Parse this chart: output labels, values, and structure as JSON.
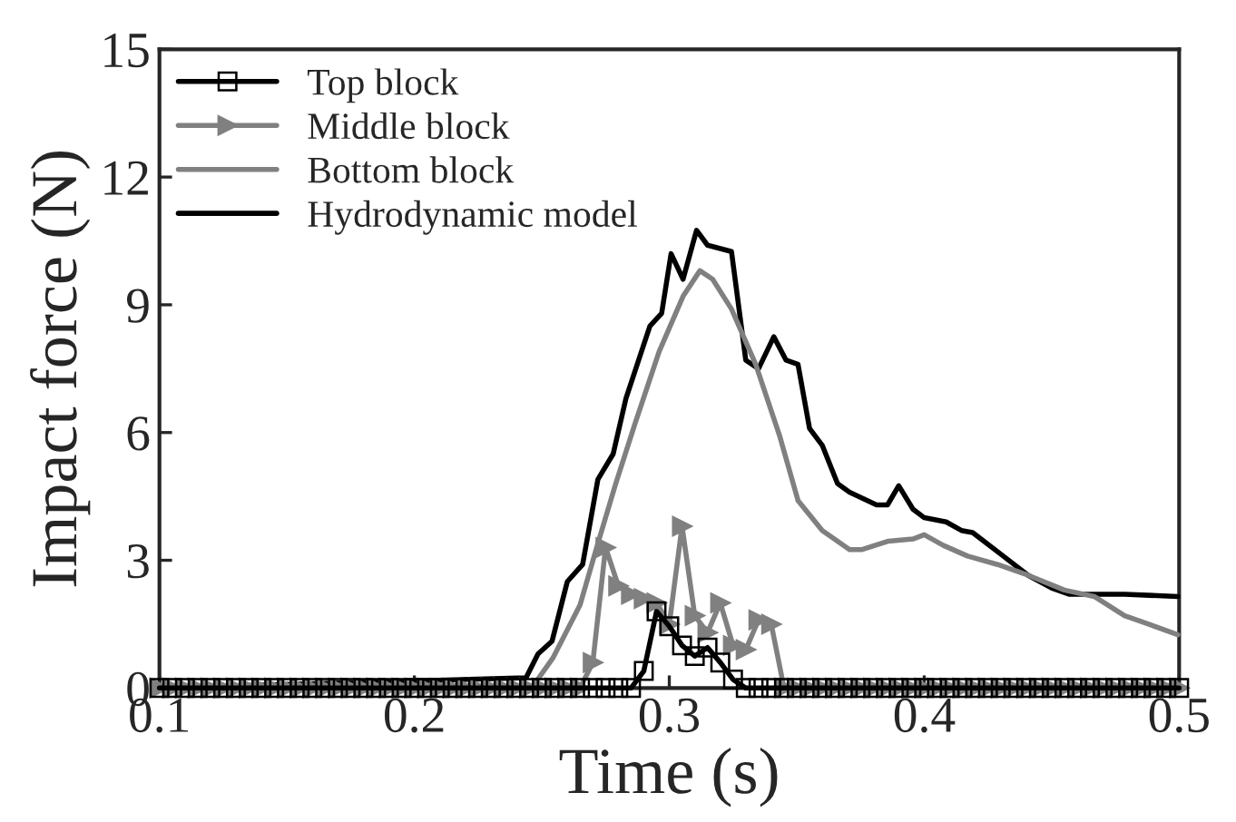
{
  "chart_data": {
    "type": "line",
    "xlabel": "Time (s)",
    "ylabel": "Impact force (N)",
    "xlim": [
      0.1,
      0.5
    ],
    "ylim": [
      0,
      15
    ],
    "xticks": [
      0.1,
      0.2,
      0.3,
      0.4,
      0.5
    ],
    "yticks": [
      0,
      3,
      6,
      9,
      12,
      15
    ],
    "grid": false,
    "legend": "top left",
    "series": [
      {
        "name": "Top block",
        "color": "#000000",
        "marker": "square",
        "x": [
          0.1,
          0.105,
          0.11,
          0.115,
          0.12,
          0.125,
          0.13,
          0.135,
          0.14,
          0.145,
          0.15,
          0.155,
          0.16,
          0.165,
          0.17,
          0.175,
          0.18,
          0.185,
          0.19,
          0.195,
          0.2,
          0.205,
          0.21,
          0.215,
          0.22,
          0.225,
          0.23,
          0.235,
          0.24,
          0.245,
          0.25,
          0.255,
          0.26,
          0.265,
          0.27,
          0.275,
          0.28,
          0.285,
          0.29,
          0.295,
          0.3,
          0.305,
          0.31,
          0.315,
          0.32,
          0.325,
          0.33,
          0.335,
          0.34,
          0.345,
          0.35,
          0.355,
          0.36,
          0.365,
          0.37,
          0.375,
          0.38,
          0.385,
          0.39,
          0.395,
          0.4,
          0.405,
          0.41,
          0.415,
          0.42,
          0.425,
          0.43,
          0.435,
          0.44,
          0.445,
          0.45,
          0.455,
          0.46,
          0.465,
          0.47,
          0.475,
          0.48,
          0.485,
          0.49,
          0.495,
          0.5
        ],
        "values": [
          0,
          0,
          0,
          0,
          0,
          0,
          0,
          0,
          0,
          0,
          0,
          0,
          0,
          0,
          0,
          0,
          0,
          0,
          0,
          0,
          0,
          0,
          0,
          0,
          0,
          0,
          0,
          0,
          0,
          0,
          0,
          0,
          0,
          0,
          0,
          0,
          0,
          0,
          0.4,
          1.8,
          1.45,
          1.0,
          0.75,
          0.95,
          0.6,
          0.2,
          0,
          0,
          0,
          0,
          0,
          0,
          0,
          0,
          0,
          0,
          0,
          0,
          0,
          0,
          0,
          0,
          0,
          0,
          0,
          0,
          0,
          0,
          0,
          0,
          0,
          0,
          0,
          0,
          0,
          0,
          0,
          0,
          0,
          0,
          0
        ]
      },
      {
        "name": "Middle block",
        "color": "#808080",
        "marker": "triangle",
        "x": [
          0.1,
          0.105,
          0.11,
          0.115,
          0.12,
          0.125,
          0.13,
          0.135,
          0.14,
          0.145,
          0.15,
          0.155,
          0.16,
          0.165,
          0.17,
          0.175,
          0.18,
          0.185,
          0.19,
          0.195,
          0.2,
          0.205,
          0.21,
          0.215,
          0.22,
          0.225,
          0.23,
          0.235,
          0.24,
          0.245,
          0.25,
          0.255,
          0.26,
          0.265,
          0.27,
          0.275,
          0.28,
          0.285,
          0.29,
          0.295,
          0.3,
          0.305,
          0.31,
          0.315,
          0.32,
          0.325,
          0.33,
          0.335,
          0.34,
          0.345,
          0.35,
          0.355,
          0.36,
          0.365,
          0.37,
          0.375,
          0.38,
          0.385,
          0.39,
          0.395,
          0.4,
          0.405,
          0.41,
          0.415,
          0.42,
          0.425,
          0.43,
          0.435,
          0.44,
          0.445,
          0.45,
          0.455,
          0.46,
          0.465,
          0.47,
          0.475,
          0.48,
          0.485,
          0.49,
          0.495,
          0.5
        ],
        "values": [
          0,
          0,
          0,
          0,
          0,
          0,
          0,
          0,
          0,
          0,
          0,
          0,
          0,
          0,
          0,
          0,
          0,
          0,
          0,
          0,
          0,
          0,
          0,
          0,
          0,
          0,
          0,
          0,
          0,
          0,
          0,
          0,
          0,
          0,
          0.6,
          3.3,
          2.4,
          2.2,
          2.1,
          2.0,
          1.5,
          3.8,
          1.7,
          1.3,
          2.0,
          1.0,
          0.9,
          1.6,
          1.5,
          0,
          0,
          0,
          0,
          0,
          0,
          0,
          0,
          0,
          0,
          0,
          0,
          0,
          0,
          0,
          0,
          0,
          0,
          0,
          0,
          0,
          0,
          0,
          0,
          0,
          0,
          0,
          0,
          0,
          0,
          0,
          0
        ]
      },
      {
        "name": "Bottom block",
        "color": "#808080",
        "marker": "none",
        "x": [
          0.1,
          0.246,
          0.2543,
          0.265,
          0.272,
          0.279,
          0.2865,
          0.296,
          0.3054,
          0.312,
          0.317,
          0.3244,
          0.3339,
          0.3434,
          0.3505,
          0.36,
          0.3707,
          0.3754,
          0.386,
          0.3956,
          0.4,
          0.4075,
          0.417,
          0.4288,
          0.4407,
          0.455,
          0.4667,
          0.4786,
          0.488,
          0.4995
        ],
        "values": [
          0,
          0,
          0.7,
          1.95,
          3.4,
          4.8,
          6.2,
          7.9,
          9.2,
          9.8,
          9.6,
          8.9,
          7.6,
          5.9,
          4.4,
          3.7,
          3.25,
          3.25,
          3.45,
          3.5,
          3.6,
          3.35,
          3.1,
          2.9,
          2.65,
          2.3,
          2.15,
          1.7,
          1.5,
          1.25
        ]
      },
      {
        "name": "Hydrodynamic model",
        "color": "#000000",
        "marker": "none",
        "x": [
          0.1,
          0.2438,
          0.2485,
          0.254,
          0.26,
          0.266,
          0.272,
          0.278,
          0.283,
          0.2924,
          0.297,
          0.3007,
          0.3054,
          0.3107,
          0.315,
          0.3244,
          0.33,
          0.335,
          0.341,
          0.3458,
          0.3505,
          0.355,
          0.36,
          0.366,
          0.3707,
          0.3813,
          0.3856,
          0.39,
          0.3956,
          0.4,
          0.4086,
          0.4146,
          0.419,
          0.431,
          0.4407,
          0.45,
          0.457,
          0.4786,
          0.4995
        ],
        "values": [
          0,
          0.24,
          0.8,
          1.1,
          2.5,
          2.9,
          4.9,
          5.5,
          6.8,
          8.5,
          8.8,
          10.2,
          9.6,
          10.75,
          10.4,
          10.25,
          7.7,
          7.5,
          8.25,
          7.7,
          7.6,
          6.1,
          5.7,
          4.8,
          4.6,
          4.3,
          4.3,
          4.75,
          4.2,
          4.0,
          3.9,
          3.7,
          3.65,
          3.1,
          2.65,
          2.35,
          2.2,
          2.2,
          2.15
        ]
      }
    ]
  }
}
